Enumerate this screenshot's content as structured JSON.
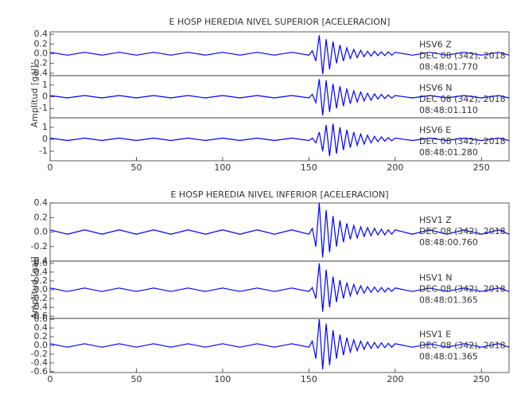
{
  "chart_data": [
    {
      "type": "line",
      "title": "E HOSP HEREDIA NIVEL SUPERIOR [ACELERACION]",
      "y_label": "Amplitud [gal]",
      "xlim": [
        0,
        266
      ],
      "xticks": [
        0,
        50,
        100,
        150,
        200,
        250
      ],
      "x": [
        0,
        10,
        20,
        30,
        40,
        50,
        60,
        70,
        80,
        90,
        100,
        110,
        120,
        130,
        140,
        150,
        152,
        154,
        156,
        158,
        160,
        162,
        164,
        166,
        168,
        170,
        172,
        174,
        176,
        178,
        180,
        182,
        184,
        186,
        188,
        190,
        192,
        194,
        196,
        198,
        200,
        210,
        220,
        230,
        240,
        250,
        260,
        266
      ],
      "panels": [
        {
          "station": "HSV6   Z",
          "date": "DEC 08 (342), 2018",
          "time": "08:48:01.770",
          "color": "#0000ff",
          "ylim": [
            -0.45,
            0.45
          ],
          "yticks": [
            0.4,
            0.2,
            {
              "value": 0,
              "label": "0.0"
            },
            -0.2,
            -0.4
          ],
          "values": [
            0.03,
            -0.03,
            0.03,
            -0.03,
            0.03,
            -0.03,
            0.03,
            -0.03,
            0.03,
            -0.03,
            0.03,
            -0.03,
            0.03,
            -0.03,
            0.03,
            -0.03,
            0.06,
            -0.15,
            0.38,
            -0.42,
            0.3,
            -0.32,
            0.25,
            -0.2,
            0.18,
            -0.15,
            0.12,
            -0.1,
            0.09,
            -0.08,
            0.07,
            -0.06,
            0.05,
            -0.05,
            0.05,
            -0.04,
            0.04,
            -0.04,
            0.04,
            -0.03,
            0.03,
            -0.03,
            0.03,
            -0.03,
            0.03,
            -0.03,
            0.03,
            -0.03
          ]
        },
        {
          "station": "HSV6   N",
          "date": "DEC 08 (342), 2018",
          "time": "08:48:01.110",
          "color": "#0000ff",
          "ylim": [
            -1.8,
            1.8
          ],
          "yticks": [
            1,
            0,
            -1
          ],
          "values": [
            0.1,
            -0.1,
            0.1,
            -0.1,
            0.1,
            -0.1,
            0.1,
            -0.1,
            0.1,
            -0.1,
            0.1,
            -0.1,
            0.1,
            -0.1,
            0.1,
            -0.1,
            0.2,
            -0.5,
            1.5,
            -1.6,
            1.4,
            -1.3,
            1.1,
            -1,
            0.9,
            -0.8,
            0.7,
            -0.6,
            0.5,
            -0.45,
            0.4,
            -0.35,
            0.3,
            -0.3,
            0.25,
            -0.2,
            0.2,
            -0.15,
            0.15,
            -0.12,
            0.1,
            -0.1,
            0.1,
            -0.1,
            0.1,
            -0.1,
            0.1,
            -0.1
          ]
        },
        {
          "station": "HSV6   E",
          "date": "DEC 08 (342), 2018",
          "time": "08:48:01.280",
          "color": "#0000ff",
          "ylim": [
            -1.8,
            1.8
          ],
          "yticks": [
            1,
            0,
            -1
          ],
          "values": [
            0.1,
            -0.1,
            0.1,
            -0.1,
            0.1,
            -0.1,
            0.1,
            -0.1,
            0.1,
            -0.1,
            0.1,
            -0.1,
            0.1,
            -0.1,
            0.1,
            -0.1,
            0.1,
            -0.3,
            0.6,
            -1,
            1.2,
            -1.4,
            1.3,
            -1.2,
            1,
            -0.9,
            0.8,
            -0.7,
            0.6,
            -0.5,
            0.45,
            -0.4,
            0.35,
            -0.3,
            0.25,
            -0.2,
            0.2,
            -0.15,
            0.15,
            -0.12,
            0.1,
            -0.1,
            0.1,
            -0.1,
            0.1,
            -0.1,
            0.1,
            -0.1
          ]
        }
      ]
    },
    {
      "type": "line",
      "title": "E HOSP HEREDIA NIVEL INFERIOR [ACELERACION]",
      "y_label": "Amplitud [gal]",
      "xlim": [
        0,
        266
      ],
      "xticks": [
        0,
        50,
        100,
        150,
        200,
        250
      ],
      "x": [
        0,
        10,
        20,
        30,
        40,
        50,
        60,
        70,
        80,
        90,
        100,
        110,
        120,
        130,
        140,
        150,
        152,
        154,
        156,
        158,
        160,
        162,
        164,
        166,
        168,
        170,
        172,
        174,
        176,
        178,
        180,
        182,
        184,
        186,
        188,
        190,
        192,
        194,
        196,
        198,
        200,
        210,
        220,
        230,
        240,
        250,
        260,
        266
      ],
      "panels": [
        {
          "station": "HSV1   Z",
          "date": "DEC 08 (342), 2018",
          "time": "08:48:00.760",
          "color": "#0000ff",
          "ylim": [
            -0.4,
            0.4
          ],
          "yticks": [
            0.4,
            0.2,
            {
              "value": 0,
              "label": "0.0"
            },
            -0.2,
            -0.4
          ],
          "values": [
            0.03,
            -0.03,
            0.03,
            -0.03,
            0.03,
            -0.03,
            0.03,
            -0.03,
            0.03,
            -0.03,
            0.03,
            -0.03,
            0.03,
            -0.03,
            0.03,
            -0.03,
            0.05,
            -0.2,
            0.4,
            -0.35,
            0.3,
            -0.28,
            0.22,
            -0.2,
            0.16,
            -0.14,
            0.12,
            -0.1,
            0.09,
            -0.08,
            0.07,
            -0.06,
            0.06,
            -0.05,
            0.05,
            -0.04,
            0.04,
            -0.04,
            0.03,
            -0.03,
            0.03,
            -0.03,
            0.03,
            -0.03,
            0.03,
            -0.03,
            0.03,
            -0.03
          ]
        },
        {
          "station": "HSV1   N",
          "date": "DEC 08 (342), 2018",
          "time": "08:48:01.365",
          "color": "#0000ff",
          "ylim": [
            -0.65,
            0.65
          ],
          "yticks": [
            0.6,
            0.4,
            0.2,
            {
              "value": 0,
              "label": "0.0"
            },
            -0.2,
            -0.4,
            -0.6
          ],
          "values": [
            0.04,
            -0.04,
            0.04,
            -0.04,
            0.04,
            -0.04,
            0.04,
            -0.04,
            0.04,
            -0.04,
            0.04,
            -0.04,
            0.04,
            -0.04,
            0.04,
            -0.04,
            0.05,
            -0.2,
            0.6,
            -0.5,
            0.45,
            -0.4,
            0.3,
            -0.28,
            0.22,
            -0.2,
            0.16,
            -0.14,
            0.12,
            -0.1,
            0.09,
            -0.08,
            0.07,
            -0.06,
            0.06,
            -0.05,
            0.05,
            -0.05,
            0.04,
            -0.04,
            0.04,
            -0.04,
            0.04,
            -0.04,
            0.04,
            -0.04,
            0.04,
            -0.04
          ]
        },
        {
          "station": "HSV1   E",
          "date": "DEC 08 (342), 2018",
          "time": "08:48:01.365",
          "color": "#0000ff",
          "ylim": [
            -0.62,
            0.62
          ],
          "yticks": [
            0.6,
            0.4,
            0.2,
            {
              "value": 0,
              "label": "0.0"
            },
            -0.2,
            -0.4,
            -0.6
          ],
          "values": [
            0.04,
            -0.04,
            0.04,
            -0.04,
            0.04,
            -0.04,
            0.04,
            -0.04,
            0.04,
            -0.04,
            0.04,
            -0.04,
            0.04,
            -0.04,
            0.04,
            -0.04,
            0.1,
            -0.3,
            0.6,
            -0.55,
            0.5,
            -0.45,
            0.35,
            -0.3,
            0.25,
            -0.22,
            0.18,
            -0.15,
            0.13,
            -0.12,
            0.1,
            -0.09,
            0.08,
            -0.07,
            0.07,
            -0.06,
            0.06,
            -0.05,
            0.05,
            -0.04,
            0.04,
            -0.04,
            0.04,
            -0.04,
            0.04,
            -0.04,
            0.04,
            -0.04
          ]
        }
      ]
    }
  ]
}
